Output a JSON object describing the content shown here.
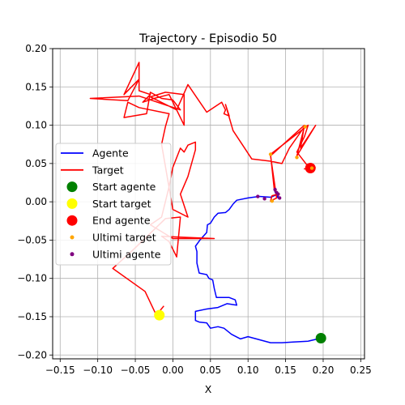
{
  "chart_data": {
    "type": "line",
    "title": "Trajectory - Episodio 50",
    "xlabel": "X",
    "ylabel": "",
    "xlim": [
      -0.16,
      0.255
    ],
    "ylim": [
      -0.205,
      0.2
    ],
    "xticks": [
      -0.15,
      -0.1,
      -0.05,
      0.0,
      0.05,
      0.1,
      0.15,
      0.2,
      0.25
    ],
    "yticks": [
      -0.2,
      -0.15,
      -0.1,
      -0.05,
      0.0,
      0.05,
      0.1,
      0.15,
      0.2
    ],
    "xtick_labels": [
      "−0.15",
      "−0.10",
      "−0.05",
      "0.00",
      "0.05",
      "0.10",
      "0.15",
      "0.20",
      "0.25"
    ],
    "ytick_labels": [
      "−0.20",
      "−0.15",
      "−0.10",
      "−0.05",
      "0.00",
      "0.05",
      "0.10",
      "0.15",
      "0.20"
    ],
    "grid": true,
    "legend_position": "center-left",
    "colors": {
      "agente": "#0000ff",
      "target": "#ff0000",
      "start_agente": "#008000",
      "start_target": "#ffff00",
      "end_agente": "#ff0000",
      "ultimi_target": "#ffa500",
      "ultimi_agente": "#800080"
    },
    "series": [
      {
        "name": "Agente",
        "kind": "line",
        "color": "#0000ff",
        "points": [
          [
            0.197,
            -0.178
          ],
          [
            0.18,
            -0.182
          ],
          [
            0.16,
            -0.183
          ],
          [
            0.145,
            -0.184
          ],
          [
            0.13,
            -0.184
          ],
          [
            0.115,
            -0.18
          ],
          [
            0.1,
            -0.176
          ],
          [
            0.09,
            -0.179
          ],
          [
            0.078,
            -0.173
          ],
          [
            0.068,
            -0.165
          ],
          [
            0.06,
            -0.163
          ],
          [
            0.05,
            -0.165
          ],
          [
            0.045,
            -0.158
          ],
          [
            0.035,
            -0.157
          ],
          [
            0.03,
            -0.155
          ],
          [
            0.03,
            -0.143
          ],
          [
            0.045,
            -0.14
          ],
          [
            0.06,
            -0.138
          ],
          [
            0.072,
            -0.133
          ],
          [
            0.085,
            -0.135
          ],
          [
            0.083,
            -0.128
          ],
          [
            0.075,
            -0.125
          ],
          [
            0.058,
            -0.125
          ],
          [
            0.055,
            -0.113
          ],
          [
            0.053,
            -0.102
          ],
          [
            0.048,
            -0.1
          ],
          [
            0.045,
            -0.095
          ],
          [
            0.035,
            -0.093
          ],
          [
            0.032,
            -0.08
          ],
          [
            0.032,
            -0.065
          ],
          [
            0.03,
            -0.058
          ],
          [
            0.036,
            -0.05
          ],
          [
            0.045,
            -0.04
          ],
          [
            0.046,
            -0.03
          ],
          [
            0.05,
            -0.028
          ],
          [
            0.055,
            -0.02
          ],
          [
            0.06,
            -0.015
          ],
          [
            0.07,
            -0.014
          ],
          [
            0.075,
            -0.01
          ],
          [
            0.08,
            -0.003
          ],
          [
            0.085,
            0.002
          ],
          [
            0.1,
            0.005
          ],
          [
            0.115,
            0.007
          ],
          [
            0.13,
            0.006
          ],
          [
            0.14,
            0.01
          ],
          [
            0.14,
            0.005
          ],
          [
            0.135,
            0.015
          ]
        ]
      },
      {
        "name": "Target",
        "kind": "line",
        "color": "#ff0000",
        "points": [
          [
            -0.012,
            -0.136
          ],
          [
            -0.022,
            -0.148
          ],
          [
            -0.037,
            -0.117
          ],
          [
            -0.08,
            -0.087
          ],
          [
            -0.05,
            -0.06
          ],
          [
            -0.01,
            -0.022
          ],
          [
            0.01,
            -0.02
          ],
          [
            0.005,
            -0.072
          ],
          [
            -0.005,
            -0.052
          ],
          [
            -0.015,
            -0.045
          ],
          [
            0.055,
            -0.048
          ],
          [
            0.0,
            -0.048
          ],
          [
            -0.03,
            -0.03
          ],
          [
            -0.015,
            -0.02
          ],
          [
            -0.005,
            0.02
          ],
          [
            0.0,
            0.045
          ],
          [
            0.01,
            0.07
          ],
          [
            0.015,
            0.065
          ],
          [
            0.02,
            0.074
          ],
          [
            0.025,
            0.076
          ],
          [
            0.03,
            0.078
          ],
          [
            0.03,
            0.068
          ],
          [
            0.02,
            0.033
          ],
          [
            0.01,
            0.01
          ],
          [
            0.02,
            -0.02
          ],
          [
            0.0,
            -0.01
          ],
          [
            -0.015,
            0.075
          ],
          [
            -0.01,
            0.098
          ],
          [
            -0.005,
            0.115
          ],
          [
            -0.045,
            0.123
          ],
          [
            -0.06,
            0.13
          ],
          [
            -0.065,
            0.11
          ],
          [
            -0.035,
            0.115
          ],
          [
            -0.03,
            0.143
          ],
          [
            -0.015,
            0.135
          ],
          [
            0.0,
            0.133
          ],
          [
            0.01,
            0.12
          ],
          [
            -0.045,
            0.138
          ],
          [
            -0.11,
            0.135
          ],
          [
            -0.06,
            0.132
          ],
          [
            -0.045,
            0.16
          ],
          [
            -0.065,
            0.14
          ],
          [
            -0.045,
            0.182
          ],
          [
            -0.045,
            0.145
          ],
          [
            -0.03,
            0.14
          ],
          [
            -0.04,
            0.13
          ],
          [
            -0.025,
            0.135
          ],
          [
            -0.005,
            0.14
          ],
          [
            0.015,
            0.1
          ],
          [
            0.015,
            0.14
          ],
          [
            -0.01,
            0.143
          ],
          [
            -0.03,
            0.137
          ],
          [
            0.005,
            0.12
          ],
          [
            0.02,
            0.153
          ],
          [
            0.045,
            0.117
          ],
          [
            0.065,
            0.13
          ],
          [
            0.07,
            0.12
          ],
          [
            0.068,
            0.115
          ],
          [
            0.075,
            0.112
          ],
          [
            0.07,
            0.127
          ],
          [
            0.08,
            0.093
          ],
          [
            0.105,
            0.056
          ],
          [
            0.13,
            0.053
          ],
          [
            0.145,
            0.05
          ],
          [
            0.155,
            0.07
          ],
          [
            0.175,
            0.098
          ],
          [
            0.165,
            0.06
          ],
          [
            0.19,
            0.1
          ],
          [
            0.17,
            0.07
          ],
          [
            0.175,
            0.1
          ],
          [
            0.13,
            0.06
          ],
          [
            0.138,
            0.005
          ],
          [
            0.13,
            0.001
          ],
          [
            0.132,
            0.008
          ],
          [
            0.14,
            0.01
          ],
          [
            0.135,
            0.015
          ],
          [
            0.13,
            0.062
          ],
          [
            0.18,
            0.1
          ],
          [
            0.175,
            0.085
          ],
          [
            0.165,
            0.065
          ],
          [
            0.18,
            0.046
          ],
          [
            0.185,
            0.044
          ],
          [
            0.175,
            0.043
          ],
          [
            0.19,
            0.045
          ]
        ]
      },
      {
        "name": "Start agente",
        "kind": "marker",
        "color": "#008000",
        "points": [
          [
            0.197,
            -0.178
          ]
        ]
      },
      {
        "name": "Start target",
        "kind": "marker",
        "color": "#ffff00",
        "points": [
          [
            -0.018,
            -0.148
          ]
        ]
      },
      {
        "name": "End agente",
        "kind": "marker",
        "color": "#ff0000",
        "points": [
          [
            0.183,
            0.044
          ]
        ]
      },
      {
        "name": "Ultimi target",
        "kind": "dots",
        "color": "#ffa500",
        "points": [
          [
            0.13,
            0.062
          ],
          [
            0.165,
            0.058
          ],
          [
            0.176,
            0.098
          ],
          [
            0.185,
            0.044
          ],
          [
            0.132,
            0.001
          ],
          [
            0.14,
            0.01
          ]
        ]
      },
      {
        "name": "Ultimi agente",
        "kind": "dots",
        "color": "#800080",
        "points": [
          [
            0.113,
            0.007
          ],
          [
            0.122,
            0.004
          ],
          [
            0.136,
            0.016
          ],
          [
            0.142,
            0.005
          ],
          [
            0.14,
            0.01
          ],
          [
            0.138,
            0.012
          ]
        ]
      }
    ]
  }
}
